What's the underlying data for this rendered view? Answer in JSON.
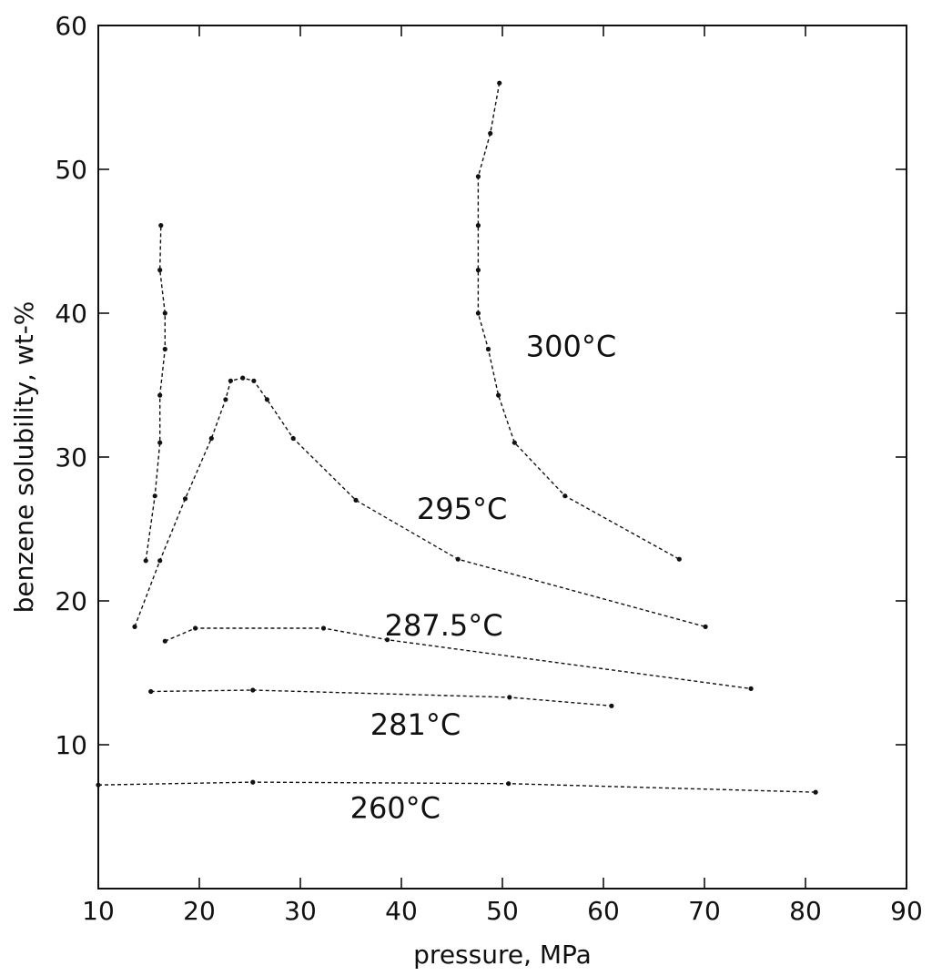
{
  "chart_data": {
    "type": "line",
    "xlabel": "pressure, MPa",
    "ylabel": "benzene solubility, wt-%",
    "xlim": [
      10,
      90
    ],
    "ylim": [
      0,
      60
    ],
    "xticks": [
      10,
      20,
      30,
      40,
      50,
      60,
      70,
      80,
      90
    ],
    "yticks": [
      10,
      20,
      30,
      40,
      50,
      60
    ],
    "grid": false,
    "series": [
      {
        "name": "300°C",
        "points": [
          [
            14.7,
            22.8
          ],
          [
            15.6,
            27.3
          ],
          [
            16.1,
            31.0
          ],
          [
            16.1,
            34.3
          ],
          [
            16.6,
            37.5
          ],
          [
            16.6,
            40.0
          ],
          [
            16.1,
            43.0
          ],
          [
            16.2,
            46.1
          ]
        ]
      },
      {
        "name": "300°C",
        "points": [
          [
            49.7,
            56.0
          ],
          [
            48.8,
            52.5
          ],
          [
            47.6,
            49.5
          ],
          [
            47.6,
            46.1
          ],
          [
            47.6,
            43.0
          ],
          [
            47.6,
            40.0
          ],
          [
            48.6,
            37.5
          ],
          [
            49.6,
            34.3
          ],
          [
            51.2,
            31.0
          ],
          [
            56.2,
            27.3
          ],
          [
            67.5,
            22.9
          ]
        ]
      },
      {
        "name": "295°C",
        "points": [
          [
            13.6,
            18.2
          ],
          [
            16.1,
            22.8
          ],
          [
            18.6,
            27.1
          ],
          [
            21.2,
            31.3
          ],
          [
            22.6,
            34.0
          ],
          [
            23.1,
            35.3
          ],
          [
            24.3,
            35.5
          ],
          [
            25.4,
            35.3
          ],
          [
            26.7,
            34.0
          ],
          [
            29.3,
            31.3
          ],
          [
            35.5,
            27.0
          ],
          [
            45.6,
            22.9
          ],
          [
            70.1,
            18.2
          ]
        ]
      },
      {
        "name": "287.5°C",
        "points": [
          [
            16.6,
            17.2
          ],
          [
            19.6,
            18.1
          ],
          [
            32.3,
            18.1
          ],
          [
            38.6,
            17.3
          ],
          [
            74.6,
            13.9
          ]
        ]
      },
      {
        "name": "281°C",
        "points": [
          [
            15.2,
            13.7
          ],
          [
            25.3,
            13.8
          ],
          [
            50.7,
            13.3
          ],
          [
            60.8,
            12.7
          ]
        ]
      },
      {
        "name": "260°C",
        "points": [
          [
            10.0,
            7.2
          ],
          [
            25.3,
            7.4
          ],
          [
            50.6,
            7.3
          ],
          [
            81.0,
            6.7
          ]
        ]
      }
    ],
    "labels": [
      {
        "text": "300°C",
        "x": 56.8,
        "y": 37.0
      },
      {
        "text": "295°C",
        "x": 46.0,
        "y": 25.7
      },
      {
        "text": "287.5°C",
        "x": 44.2,
        "y": 17.6
      },
      {
        "text": "281°C",
        "x": 41.4,
        "y": 10.7
      },
      {
        "text": "260°C",
        "x": 39.4,
        "y": 4.9
      }
    ]
  }
}
